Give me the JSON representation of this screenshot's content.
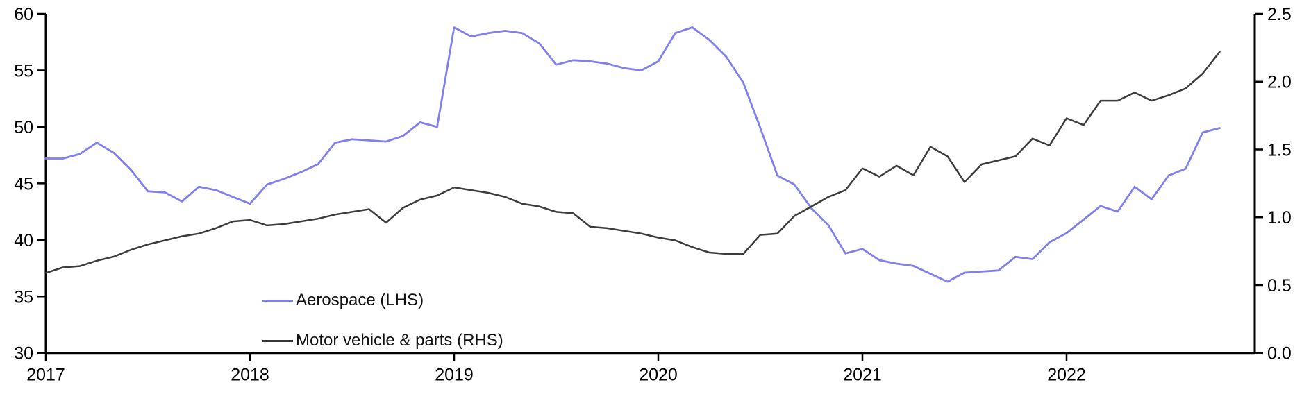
{
  "chart_data": {
    "type": "line",
    "title": "",
    "frequency": "monthly",
    "x_start": "2017-01",
    "x_end": "2022-10",
    "x_tick_labels": [
      "2017",
      "2018",
      "2019",
      "2020",
      "2021",
      "2022"
    ],
    "left_axis": {
      "tick_labels": [
        "30",
        "35",
        "40",
        "45",
        "50",
        "55",
        "60"
      ],
      "range": [
        30,
        60
      ]
    },
    "right_axis": {
      "tick_labels": [
        "0.0",
        "0.5",
        "1.0",
        "1.5",
        "2.0",
        "2.5"
      ],
      "range": [
        0,
        2.5
      ]
    },
    "grid": false,
    "legend_position": "inside-lower-left",
    "series": [
      {
        "name": "Aerospace (LHS)",
        "axis": "left",
        "color": "#7f7fee",
        "values": [
          47.2,
          47.2,
          47.6,
          48.6,
          47.7,
          46.2,
          44.3,
          44.2,
          43.4,
          44.7,
          44.4,
          43.8,
          43.2,
          44.9,
          45.4,
          46.0,
          46.7,
          48.6,
          48.9,
          48.8,
          48.7,
          49.2,
          50.4,
          50.0,
          58.8,
          58.0,
          58.3,
          58.5,
          58.3,
          57.4,
          55.5,
          55.9,
          55.8,
          55.6,
          55.2,
          55.0,
          55.8,
          58.3,
          58.8,
          57.7,
          56.2,
          53.9,
          49.9,
          45.7,
          44.9,
          42.8,
          41.3,
          38.8,
          39.2,
          38.2,
          37.9,
          37.7,
          37.0,
          36.3,
          37.1,
          37.2,
          37.3,
          38.5,
          38.3,
          39.8,
          40.6,
          41.8,
          43.0,
          42.5,
          44.7,
          43.6,
          45.7,
          46.3,
          49.5,
          49.9
        ]
      },
      {
        "name": "Motor vehicle & parts (RHS)",
        "axis": "right",
        "color": "#3c3c3c",
        "values": [
          0.59,
          0.63,
          0.64,
          0.68,
          0.71,
          0.76,
          0.8,
          0.83,
          0.86,
          0.88,
          0.92,
          0.97,
          0.98,
          0.94,
          0.95,
          0.97,
          0.99,
          1.02,
          1.04,
          1.06,
          0.96,
          1.07,
          1.13,
          1.16,
          1.22,
          1.2,
          1.18,
          1.15,
          1.1,
          1.08,
          1.04,
          1.03,
          0.93,
          0.92,
          0.9,
          0.88,
          0.85,
          0.83,
          0.78,
          0.74,
          0.73,
          0.73,
          0.87,
          0.88,
          1.01,
          1.08,
          1.15,
          1.2,
          1.36,
          1.3,
          1.38,
          1.31,
          1.52,
          1.45,
          1.26,
          1.39,
          1.42,
          1.45,
          1.58,
          1.53,
          1.73,
          1.68,
          1.86,
          1.86,
          1.92,
          1.86,
          1.9,
          1.95,
          2.06,
          2.22
        ]
      }
    ]
  },
  "legend": {
    "items": [
      {
        "label": "Aerospace (LHS)",
        "color": "#7f7fee"
      },
      {
        "label": "Motor vehicle & parts (RHS)",
        "color": "#3c3c3c"
      }
    ]
  }
}
